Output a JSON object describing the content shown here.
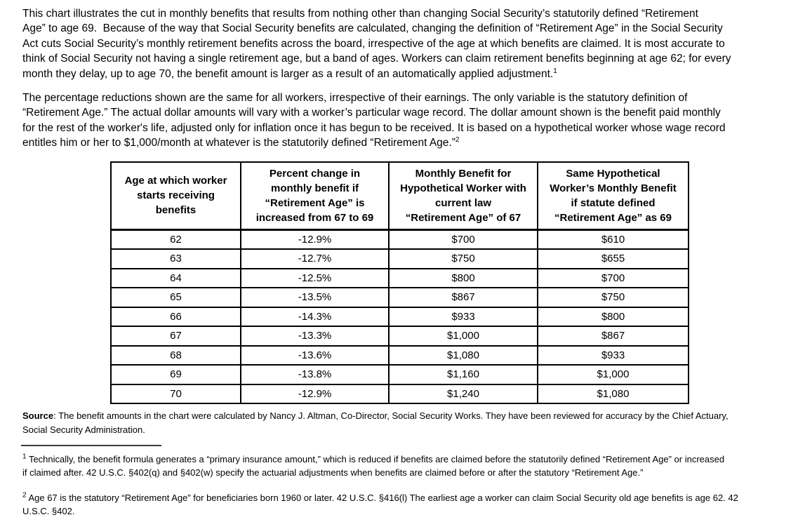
{
  "page": {
    "background": "#ffffff",
    "text_color": "#000000",
    "border_color": "#000000"
  },
  "content": {
    "paragraph_1": {
      "text": "This chart illustrates the cut in monthly benefits that results from nothing other than changing Social Security’s statutorily defined “Retirement\nAge” to age 69.  Because of the way that Social Security benefits are calculated, changing the definition of “Retirement Age” in the Social Security\nAct cuts Social Security’s monthly retirement benefits across the board, irrespective of the age at which benefits are claimed. It is most accurate to\nthink of Social Security not having a single retirement age, but a band of ages. Workers can claim retirement benefits beginning at age 62; for every\nmonth they delay, up to age 70, the benefit amount is larger as a result of an automatically applied adjustment.",
      "ref": "1"
    },
    "paragraph_2": {
      "text": "The percentage reductions shown are the same for all workers, irrespective of their earnings. The only variable is the statutory definition of\n“Retirement Age.” The actual dollar amounts will vary with a worker’s particular wage record. The dollar amount shown is the benefit paid monthly\nfor the rest of the worker's life, adjusted only for inflation once it has begun to be received. It is based on a hypothetical worker whose wage record\nentitles him or her to $1,000/month at whatever is the statutorily defined “Retirement Age.”",
      "ref": "2"
    },
    "table": {
      "headers": [
        "Age at which worker\nstarts receiving\nbenefits",
        "Percent change in\nmonthly benefit if\n“Retirement Age” is\nincreased from 67 to 69",
        "Monthly Benefit for\nHypothetical Worker with\ncurrent law\n“Retirement Age” of 67",
        "Same Hypothetical\nWorker’s Monthly Benefit\nif statute defined\n“Retirement Age” as 69"
      ],
      "rows": [
        [
          "62",
          "-12.9%",
          "$700",
          "$610"
        ],
        [
          "63",
          "-12.7%",
          "$750",
          "$655"
        ],
        [
          "64",
          "-12.5%",
          "$800",
          "$700"
        ],
        [
          "65",
          "-13.5%",
          "$867",
          "$750"
        ],
        [
          "66",
          "-14.3%",
          "$933",
          "$800"
        ],
        [
          "67",
          "-13.3%",
          "$1,000",
          "$867"
        ],
        [
          "68",
          "-13.6%",
          "$1,080",
          "$933"
        ],
        [
          "69",
          "-13.8%",
          "$1,160",
          "$1,000"
        ],
        [
          "70",
          "-12.9%",
          "$1,240",
          "$1,080"
        ]
      ]
    },
    "source": {
      "label": "Source",
      "text": ": The benefit amounts in the chart were calculated by Nancy J. Altman, Co-Director, Social Security Works. They have been reviewed for accuracy by the Chief Actuary,\nSocial Security Administration."
    },
    "footnotes": [
      {
        "marker": "1",
        "text": " Technically, the benefit formula generates a “primary insurance amount,” which is reduced if benefits are claimed before the statutorily defined “Retirement Age” or increased\nif claimed after. 42 U.S.C. §402(q) and §402(w) specify the actuarial adjustments when benefits are claimed before or after the statutory “Retirement Age.”"
      },
      {
        "marker": "2",
        "text": " Age 67 is the statutory “Retirement Age” for beneficiaries born 1960 or later. 42 U.S.C. §416(l) The earliest age a worker can claim Social Security old age benefits is age 62. 42\nU.S.C. §402."
      }
    ]
  }
}
